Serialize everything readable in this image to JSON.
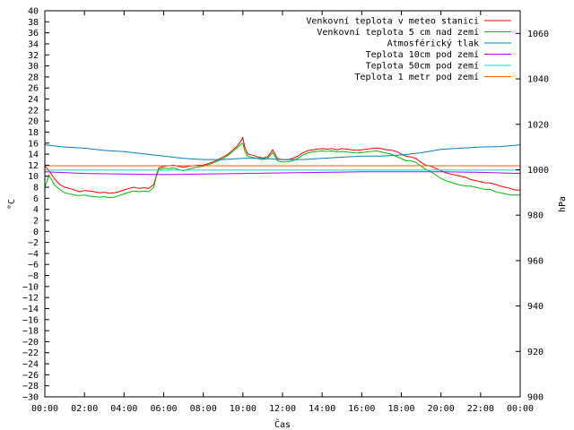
{
  "chart_data": {
    "type": "line",
    "xlabel": "Čas",
    "ylabel": "°C",
    "y2label": "hPa",
    "x_ticks": [
      "00:00",
      "02:00",
      "04:00",
      "06:00",
      "08:00",
      "10:00",
      "12:00",
      "14:00",
      "16:00",
      "18:00",
      "20:00",
      "22:00",
      "00:00"
    ],
    "xlim": [
      0,
      24
    ],
    "ylim": [
      -30,
      40
    ],
    "y_tick_step": 2,
    "y2lim": [
      900,
      1070
    ],
    "y2_ticks": [
      900,
      920,
      940,
      960,
      980,
      1000,
      1020,
      1040,
      1060
    ],
    "grid": false,
    "legend_position": "top-right",
    "series": [
      {
        "name": "Venkovní teplota v meteo stanici",
        "axis": "left",
        "color": "#ff0000",
        "x": [
          0,
          0.1,
          0.2,
          0.3,
          0.5,
          0.75,
          1,
          1.25,
          1.5,
          1.75,
          2,
          2.25,
          2.5,
          2.75,
          3,
          3.25,
          3.5,
          3.75,
          4,
          4.25,
          4.5,
          4.75,
          5,
          5.25,
          5.5,
          5.6,
          5.75,
          6,
          6.25,
          6.5,
          6.75,
          7,
          7.25,
          7.5,
          7.75,
          8,
          8.25,
          8.5,
          8.75,
          9,
          9.25,
          9.5,
          9.75,
          9.9,
          10,
          10.1,
          10.25,
          10.5,
          10.75,
          11,
          11.25,
          11.5,
          11.75,
          12,
          12.25,
          12.5,
          12.75,
          13,
          13.25,
          13.5,
          13.75,
          14,
          14.25,
          14.5,
          14.75,
          15,
          15.25,
          15.5,
          15.75,
          16,
          16.25,
          16.5,
          16.75,
          17,
          17.25,
          17.5,
          17.75,
          18,
          18.25,
          18.5,
          18.75,
          19,
          19.25,
          19.5,
          19.75,
          20,
          20.25,
          20.5,
          20.75,
          21,
          21.25,
          21.5,
          21.75,
          22,
          22.25,
          22.5,
          22.75,
          23,
          23.25,
          23.5,
          23.75,
          24
        ],
        "values": [
          11.8,
          11.5,
          11,
          10.5,
          9.5,
          8.5,
          8,
          7.8,
          7.5,
          7.2,
          7.4,
          7.3,
          7.2,
          7,
          7.1,
          6.9,
          7,
          7.2,
          7.5,
          7.8,
          8,
          7.8,
          7.9,
          7.8,
          8.5,
          9.8,
          11.5,
          11.8,
          11.9,
          12,
          11.8,
          11.6,
          11.8,
          11.9,
          12,
          12,
          12.3,
          12.6,
          13,
          13.5,
          14,
          14.8,
          15.6,
          16.4,
          17,
          15.2,
          14,
          13.8,
          13.5,
          13.3,
          13.5,
          14.8,
          13.2,
          13,
          13,
          13.2,
          13.6,
          14.2,
          14.6,
          14.8,
          14.9,
          15,
          14.9,
          15,
          14.8,
          15,
          14.9,
          14.8,
          14.7,
          14.8,
          14.9,
          15,
          15.1,
          15,
          14.8,
          14.7,
          14.5,
          14,
          13.6,
          13.5,
          13.2,
          12.5,
          12,
          11.8,
          11.4,
          11,
          10.6,
          10.4,
          10.2,
          10,
          9.8,
          9.4,
          9.2,
          9,
          8.8,
          8.8,
          8.5,
          8.2,
          8,
          7.8,
          7.5,
          7.5
        ]
      },
      {
        "name": "Venkovní teplota 5 cm nad zemí",
        "axis": "left",
        "color": "#00c000",
        "x": [
          0,
          0.1,
          0.2,
          0.3,
          0.5,
          0.75,
          1,
          1.25,
          1.5,
          1.75,
          2,
          2.25,
          2.5,
          2.75,
          3,
          3.25,
          3.5,
          3.75,
          4,
          4.25,
          4.5,
          4.75,
          5,
          5.25,
          5.5,
          5.6,
          5.75,
          6,
          6.25,
          6.5,
          6.75,
          7,
          7.25,
          7.5,
          7.75,
          8,
          8.25,
          8.5,
          8.75,
          9,
          9.25,
          9.5,
          9.75,
          9.9,
          10,
          10.1,
          10.25,
          10.5,
          10.75,
          11,
          11.25,
          11.5,
          11.75,
          12,
          12.25,
          12.5,
          12.75,
          13,
          13.25,
          13.5,
          13.75,
          14,
          14.25,
          14.5,
          14.75,
          15,
          15.25,
          15.5,
          15.75,
          16,
          16.25,
          16.5,
          16.75,
          17,
          17.25,
          17.5,
          17.75,
          18,
          18.25,
          18.5,
          18.75,
          19,
          19.25,
          19.5,
          19.75,
          20,
          20.25,
          20.5,
          20.75,
          21,
          21.25,
          21.5,
          21.75,
          22,
          22.25,
          22.5,
          22.75,
          23,
          23.25,
          23.5,
          23.75,
          24
        ],
        "values": [
          8,
          9,
          10.2,
          9.6,
          8.4,
          7.6,
          7,
          6.8,
          6.6,
          6.5,
          6.6,
          6.4,
          6.3,
          6.2,
          6.3,
          6.1,
          6.2,
          6.5,
          6.8,
          7.1,
          7.3,
          7.2,
          7.3,
          7.2,
          8,
          9.6,
          11.2,
          11.5,
          11.4,
          11.5,
          11.2,
          11,
          11.3,
          11.5,
          11.7,
          11.8,
          12.1,
          12.4,
          12.8,
          13.2,
          13.8,
          14.5,
          15.3,
          15.8,
          16,
          14.5,
          13.6,
          13.4,
          13.2,
          13,
          13.2,
          14.3,
          12.8,
          12.6,
          12.6,
          12.8,
          13.2,
          13.8,
          14.2,
          14.4,
          14.5,
          14.6,
          14.5,
          14.6,
          14.4,
          14.5,
          14.4,
          14.3,
          14.2,
          14.3,
          14.4,
          14.5,
          14.6,
          14.4,
          14.2,
          14,
          13.6,
          13.2,
          12.8,
          12.8,
          12.5,
          11.8,
          11.2,
          10.8,
          10.2,
          9.6,
          9.2,
          8.9,
          8.6,
          8.4,
          8.2,
          8.2,
          8,
          7.8,
          7.6,
          7.6,
          7.2,
          7,
          6.8,
          6.6,
          6.6,
          6.6
        ]
      },
      {
        "name": "Atmosférický tlak",
        "axis": "right",
        "color": "#0080c0",
        "x": [
          0,
          1,
          2,
          3,
          4,
          5,
          6,
          7,
          8,
          9,
          10,
          11,
          12,
          13,
          14,
          15,
          16,
          17,
          18,
          19,
          20,
          21,
          22,
          23,
          24
        ],
        "values": [
          1011,
          1010,
          1009.5,
          1008.5,
          1008,
          1007,
          1006,
          1005,
          1004.5,
          1004.5,
          1005,
          1005,
          1004.5,
          1004.5,
          1005,
          1005.5,
          1006,
          1006,
          1006.5,
          1007.5,
          1009,
          1009.5,
          1010,
          1010.2,
          1011
        ]
      },
      {
        "name": "Teplota 10cm pod zemí",
        "axis": "left",
        "color": "#b000ff",
        "x": [
          0,
          2,
          4,
          6,
          8,
          10,
          12,
          14,
          16,
          18,
          20,
          22,
          24
        ],
        "values": [
          10.8,
          10.5,
          10.4,
          10.3,
          10.4,
          10.5,
          10.6,
          10.7,
          10.8,
          10.8,
          10.8,
          10.7,
          10.5
        ]
      },
      {
        "name": "Teplota 50cm pod zemí",
        "axis": "left",
        "color": "#00d8d8",
        "x": [
          0,
          6,
          12,
          18,
          24
        ],
        "values": [
          11.1,
          11.1,
          11.1,
          11.1,
          11.1
        ]
      },
      {
        "name": "Teplota 1 metr pod zemí",
        "axis": "left",
        "color": "#ff6000",
        "x": [
          0,
          6,
          12,
          18,
          24
        ],
        "values": [
          11.9,
          11.9,
          11.9,
          11.9,
          11.9
        ]
      }
    ]
  }
}
